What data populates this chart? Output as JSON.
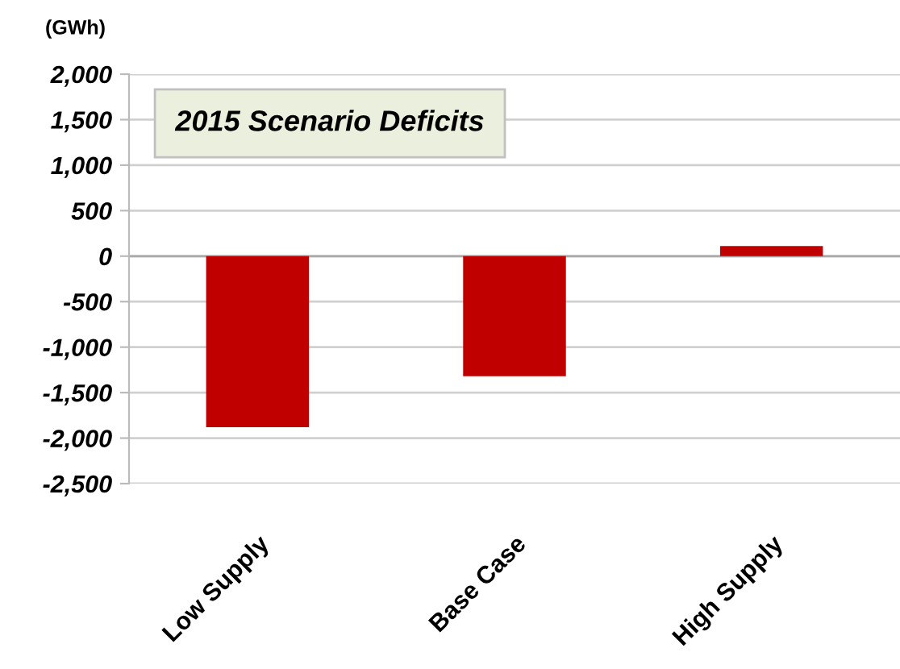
{
  "chart_data": {
    "type": "bar",
    "title": "2015 Scenario Deficits",
    "ylabel": "(GWh)",
    "categories": [
      "Low Supply",
      "Base Case",
      "High Supply"
    ],
    "values": [
      -1880,
      -1320,
      110
    ],
    "color": "#c00000",
    "ylim": [
      -2500,
      2000
    ],
    "yticks": [
      {
        "value": 2000,
        "label": "2,000"
      },
      {
        "value": 1500,
        "label": "1,500"
      },
      {
        "value": 1000,
        "label": "1,000"
      },
      500,
      0,
      -500,
      {
        "value": -1000,
        "label": "-1,000"
      },
      {
        "value": -1500,
        "label": "-1,500"
      },
      {
        "value": -2000,
        "label": "-2,000"
      },
      {
        "value": -2500,
        "label": "-2,500"
      }
    ],
    "grid": "y",
    "legend": false
  }
}
